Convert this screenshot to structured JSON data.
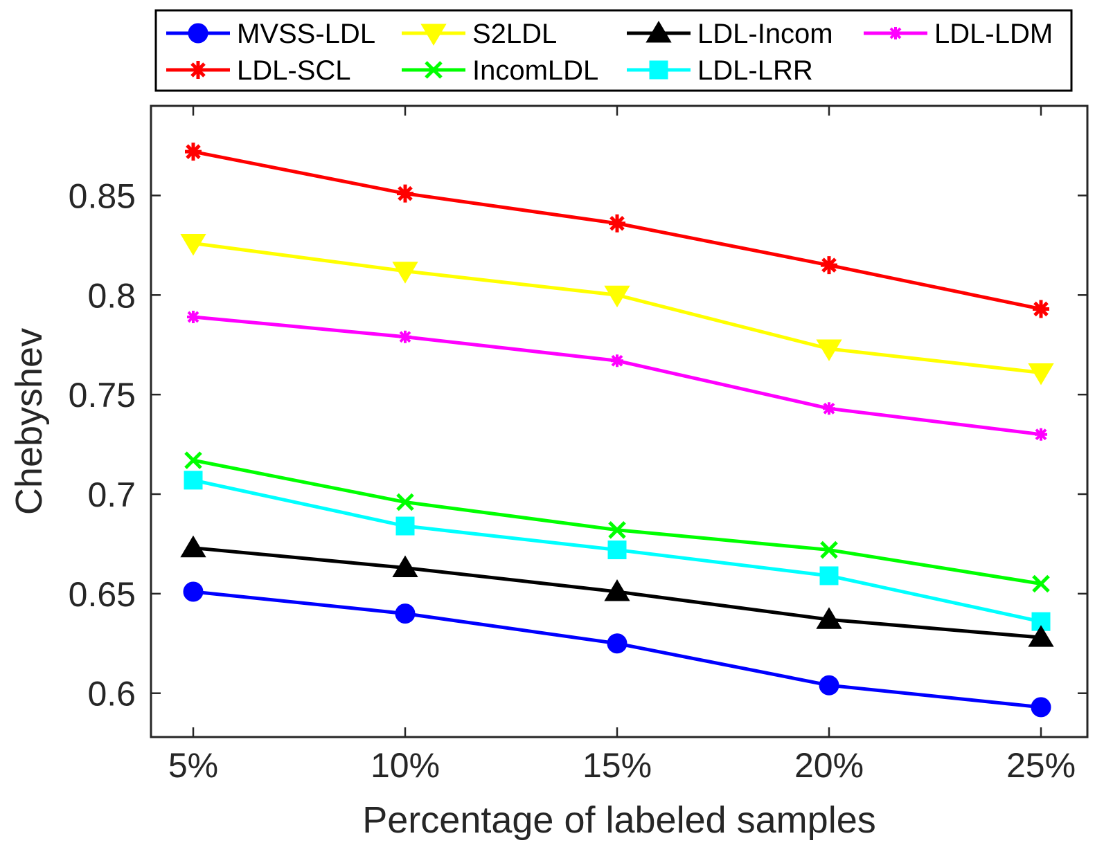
{
  "chart_data": {
    "type": "line",
    "title": "",
    "xlabel": "Percentage of labeled samples",
    "ylabel": "Chebyshev",
    "categories": [
      "5%",
      "10%",
      "15%",
      "20%",
      "25%"
    ],
    "ylim": [
      0.578,
      0.895
    ],
    "yticks": [
      0.6,
      0.65,
      0.7,
      0.75,
      0.8,
      0.85
    ],
    "ytick_labels": [
      "0.6",
      "0.65",
      "0.7",
      "0.75",
      "0.8",
      "0.85"
    ],
    "grid": false,
    "legend_position": "top, outside plot",
    "series": [
      {
        "name": "MVSS-LDL",
        "color": "#0000ff",
        "marker": "circle",
        "values": [
          0.651,
          0.64,
          0.625,
          0.604,
          0.593
        ]
      },
      {
        "name": "S2LDL",
        "color": "#ffff00",
        "marker": "triangle-down",
        "values": [
          0.826,
          0.812,
          0.8,
          0.773,
          0.761
        ]
      },
      {
        "name": "LDL-Incom",
        "color": "#000000",
        "marker": "triangle-up",
        "values": [
          0.673,
          0.663,
          0.651,
          0.637,
          0.628
        ]
      },
      {
        "name": "LDL-LDM",
        "color": "#ff00ff",
        "marker": "star",
        "values": [
          0.789,
          0.779,
          0.767,
          0.743,
          0.73
        ]
      },
      {
        "name": "LDL-SCL",
        "color": "#ff0000",
        "marker": "asterisk",
        "values": [
          0.872,
          0.851,
          0.836,
          0.815,
          0.793
        ]
      },
      {
        "name": "IncomLDL",
        "color": "#00ff00",
        "marker": "x",
        "values": [
          0.717,
          0.696,
          0.682,
          0.672,
          0.655
        ]
      },
      {
        "name": "LDL-LRR",
        "color": "#00ffff",
        "marker": "square",
        "values": [
          0.707,
          0.684,
          0.672,
          0.659,
          0.636
        ]
      }
    ]
  }
}
